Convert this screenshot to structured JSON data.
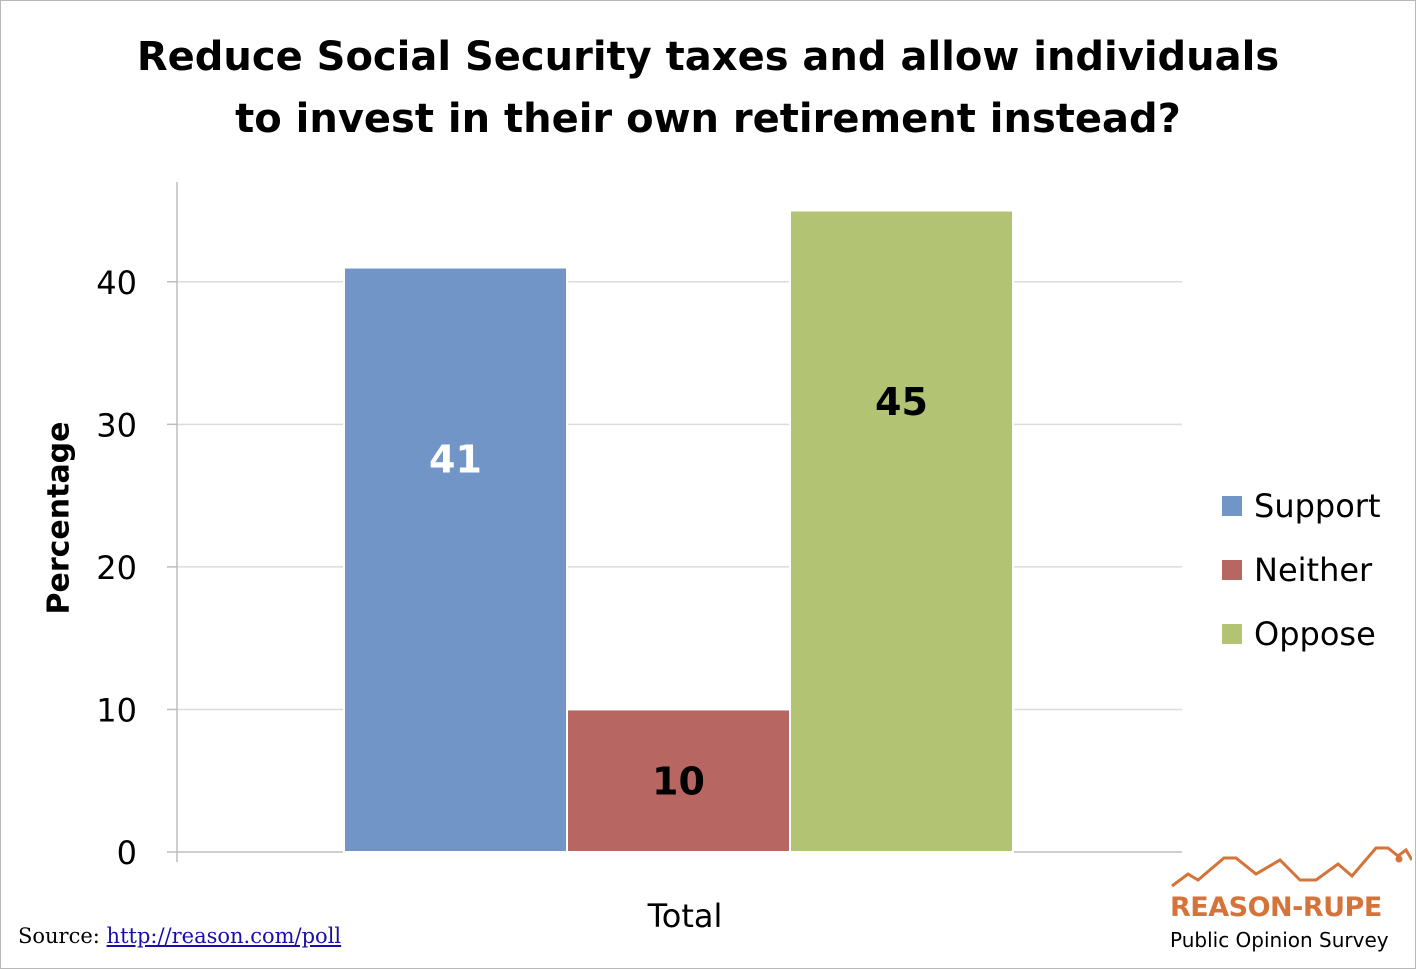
{
  "chart_data": {
    "type": "bar",
    "title_lines": [
      "Reduce Social Security taxes and allow individuals",
      "to invest in their own retirement instead?"
    ],
    "categories": [
      "Total"
    ],
    "series": [
      {
        "name": "Support",
        "values": [
          41
        ],
        "color": "#7295c8",
        "label_color": "#ffffff"
      },
      {
        "name": "Neither",
        "values": [
          10
        ],
        "color": "#b76661",
        "label_color": "#000000"
      },
      {
        "name": "Oppose",
        "values": [
          45
        ],
        "color": "#b2c474",
        "label_color": "#000000"
      }
    ],
    "xlabel": "Total",
    "ylabel": "Percentage",
    "ylim": [
      0,
      47
    ],
    "yticks": [
      "0",
      "10",
      "20",
      "30",
      "40"
    ],
    "grid": true,
    "legend": "right"
  },
  "source": {
    "prefix": "Source: ",
    "link_text": "http://reason.com/poll"
  },
  "logo": {
    "name": "REASON-RUPE",
    "subtitle": "Public Opinion Survey",
    "color": "#d4733a",
    "icon": "zigzag-line-icon"
  }
}
